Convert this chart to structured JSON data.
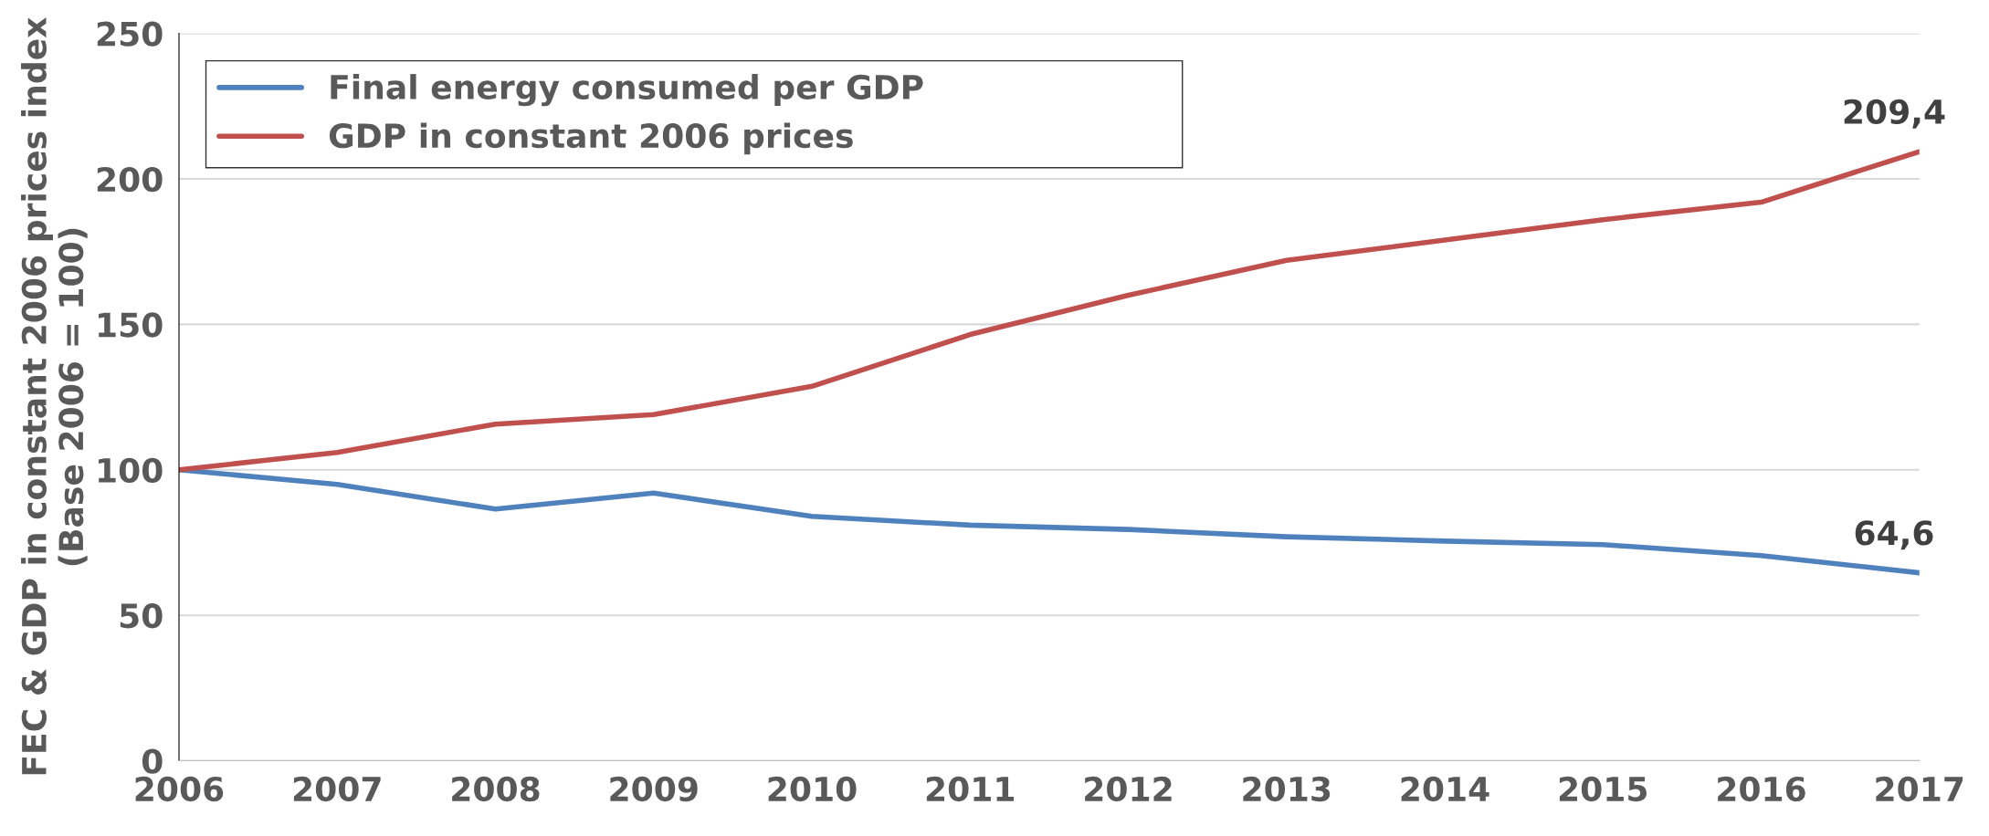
{
  "chart_data": {
    "type": "line",
    "ylabel": "FEC & GDP in constant 2006 prices index (Base 2006 = 100)",
    "x": [
      2006,
      2007,
      2008,
      2009,
      2010,
      2011,
      2012,
      2013,
      2014,
      2015,
      2016,
      2017
    ],
    "series": [
      {
        "name": "Final energy consumed per GDP",
        "color": "#4f81bd",
        "values": [
          100,
          95,
          86.5,
          92,
          84,
          81,
          79.5,
          77,
          75.5,
          74.3,
          70.5,
          64.6
        ],
        "value_labels": [
          null,
          null,
          null,
          null,
          null,
          null,
          null,
          null,
          null,
          null,
          null,
          "64,6"
        ]
      },
      {
        "name": "GDP in constant 2006 prices",
        "color": "#c0504d",
        "values": [
          100,
          106,
          115.7,
          119,
          128.7,
          146.5,
          160,
          172,
          179,
          186,
          192,
          209.4
        ],
        "value_labels": [
          null,
          null,
          null,
          null,
          null,
          null,
          null,
          null,
          null,
          null,
          null,
          "209,4"
        ]
      }
    ],
    "xlim": [
      2006,
      2017
    ],
    "xticks": [
      2006,
      2007,
      2008,
      2009,
      2010,
      2011,
      2012,
      2013,
      2014,
      2015,
      2016,
      2017
    ],
    "ylim": [
      0,
      250
    ],
    "yticks": [
      0,
      50,
      100,
      150,
      200,
      250
    ],
    "grid": "y",
    "legend": "top left"
  }
}
